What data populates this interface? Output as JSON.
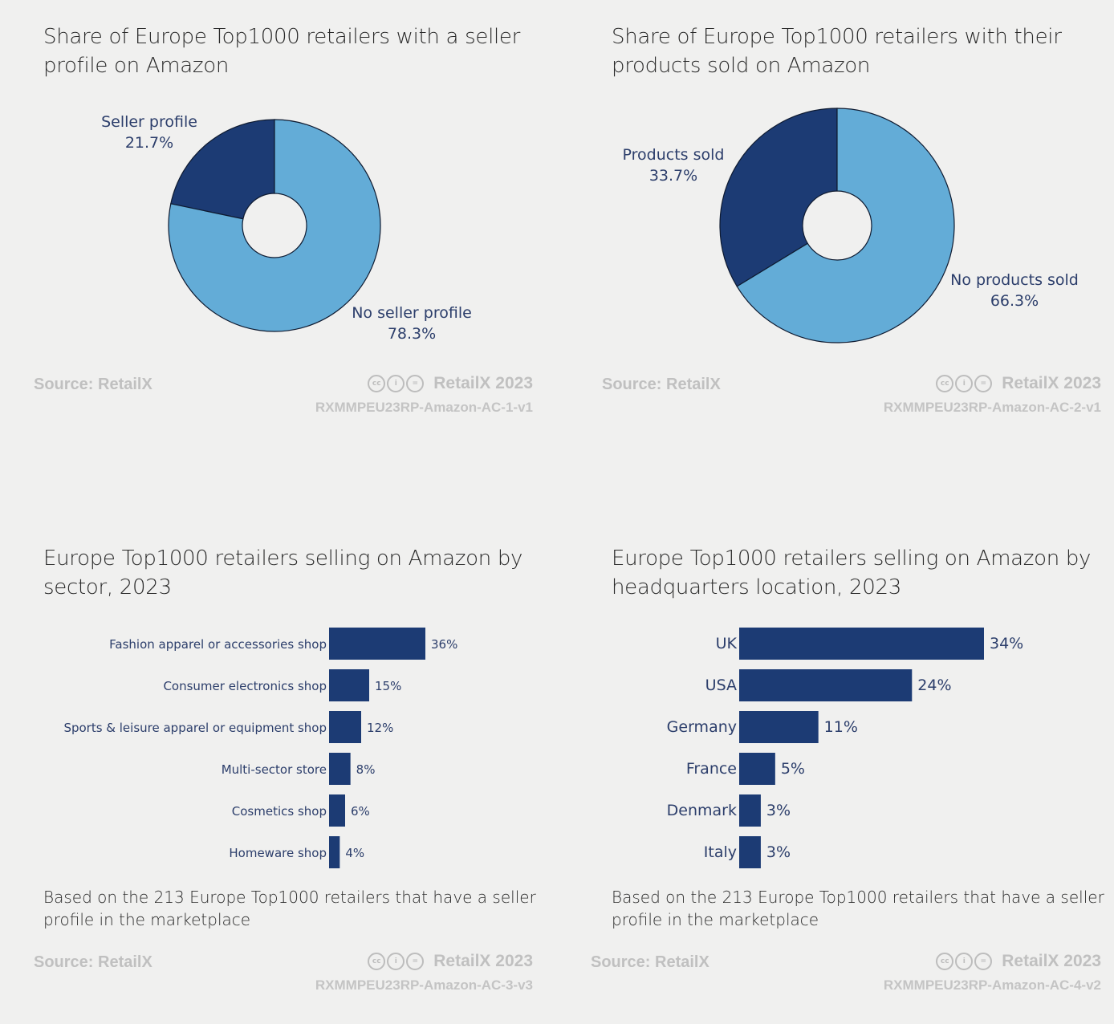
{
  "colors": {
    "dark": "#1c3b74",
    "light": "#63acd7",
    "bar": "#1c3b74"
  },
  "chart_data": [
    {
      "type": "pie",
      "title": "Share of Europe Top1000 retailers with a seller profile on Amazon",
      "slices": [
        {
          "name": "Seller profile",
          "value": 21.7,
          "label": "21.7%"
        },
        {
          "name": "No seller profile",
          "value": 78.3,
          "label": "78.3%"
        }
      ],
      "source": "Source: RetailX",
      "brand": "RetailX 2023",
      "code": "RXMMPEU23RP-Amazon-AC-1-v1"
    },
    {
      "type": "pie",
      "title": "Share of Europe Top1000 retailers with their products sold on Amazon",
      "slices": [
        {
          "name": "Products sold",
          "value": 33.7,
          "label": "33.7%"
        },
        {
          "name": "No products sold",
          "value": 66.3,
          "label": "66.3%"
        }
      ],
      "source": "Source: RetailX",
      "brand": "RetailX 2023",
      "code": "RXMMPEU23RP-Amazon-AC-2-v1"
    },
    {
      "type": "bar",
      "orientation": "horizontal",
      "title": "Europe Top1000 retailers selling on Amazon by sector, 2023",
      "categories": [
        "Fashion apparel or accessories shop",
        "Consumer electronics shop",
        "Sports & leisure apparel or equipment shop",
        "Multi-sector store",
        "Cosmetics shop",
        "Homeware shop"
      ],
      "values": [
        36,
        15,
        12,
        8,
        6,
        4
      ],
      "value_labels": [
        "36%",
        "15%",
        "12%",
        "8%",
        "6%",
        "4%"
      ],
      "note": "Based on the 213 Europe Top1000 retailers that have a seller profile in the marketplace",
      "source": "Source: RetailX",
      "brand": "RetailX 2023",
      "code": "RXMMPEU23RP-Amazon-AC-3-v3"
    },
    {
      "type": "bar",
      "orientation": "horizontal",
      "title": "Europe Top1000 retailers selling on Amazon by headquarters location, 2023",
      "categories": [
        "UK",
        "USA",
        "Germany",
        "France",
        "Denmark",
        "Italy"
      ],
      "values": [
        34,
        24,
        11,
        5,
        3,
        3
      ],
      "value_labels": [
        "34%",
        "24%",
        "11%",
        "5%",
        "3%",
        "3%"
      ],
      "note": "Based on the 213 Europe Top1000 retailers that have a seller profile in the marketplace",
      "source": "Source: RetailX",
      "brand": "RetailX 2023",
      "code": "RXMMPEU23RP-Amazon-AC-4-v2"
    }
  ]
}
